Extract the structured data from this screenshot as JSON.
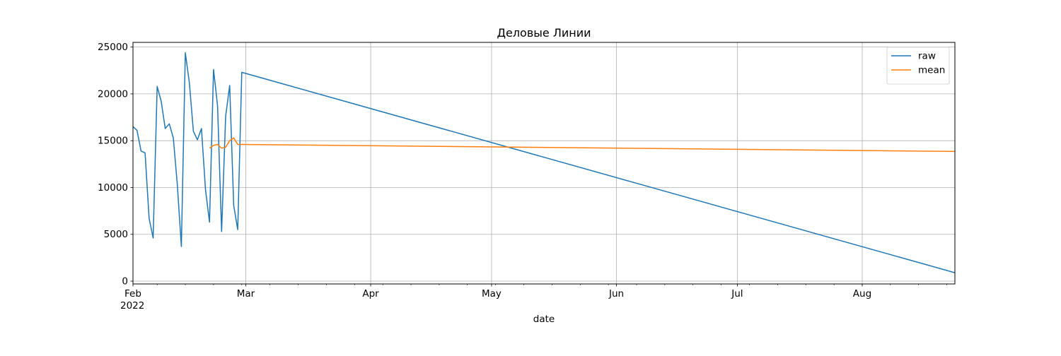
{
  "chart_data": {
    "type": "line",
    "title": "Деловые Линии",
    "xlabel": "date",
    "ylabel": "",
    "x_range": [
      "2022-02-01",
      "2022-08-24"
    ],
    "ylim": [
      -300,
      25500
    ],
    "y_ticks": [
      0,
      5000,
      10000,
      15000,
      20000,
      25000
    ],
    "x_ticks": [
      {
        "date": "2022-02-01",
        "label": "Feb",
        "sublabel": "2022"
      },
      {
        "date": "2022-03-01",
        "label": "Mar"
      },
      {
        "date": "2022-04-01",
        "label": "Apr"
      },
      {
        "date": "2022-05-01",
        "label": "May"
      },
      {
        "date": "2022-06-01",
        "label": "Jun"
      },
      {
        "date": "2022-07-01",
        "label": "Jul"
      },
      {
        "date": "2022-08-01",
        "label": "Aug"
      }
    ],
    "grid": true,
    "legend_position": "top-right",
    "series": [
      {
        "name": "raw",
        "color": "#1f77b4",
        "points": [
          [
            "2022-02-01",
            16500
          ],
          [
            "2022-02-02",
            16100
          ],
          [
            "2022-02-03",
            13900
          ],
          [
            "2022-02-04",
            13700
          ],
          [
            "2022-02-05",
            6700
          ],
          [
            "2022-02-06",
            4600
          ],
          [
            "2022-02-07",
            20800
          ],
          [
            "2022-02-08",
            19200
          ],
          [
            "2022-02-09",
            16300
          ],
          [
            "2022-02-10",
            16800
          ],
          [
            "2022-02-11",
            15300
          ],
          [
            "2022-02-12",
            10300
          ],
          [
            "2022-02-13",
            3700
          ],
          [
            "2022-02-14",
            24400
          ],
          [
            "2022-02-15",
            21200
          ],
          [
            "2022-02-16",
            16000
          ],
          [
            "2022-02-17",
            15100
          ],
          [
            "2022-02-18",
            16300
          ],
          [
            "2022-02-19",
            9800
          ],
          [
            "2022-02-20",
            6300
          ],
          [
            "2022-02-21",
            22600
          ],
          [
            "2022-02-22",
            18700
          ],
          [
            "2022-02-23",
            5300
          ],
          [
            "2022-02-24",
            17600
          ],
          [
            "2022-02-25",
            20900
          ],
          [
            "2022-02-26",
            8100
          ],
          [
            "2022-02-27",
            5500
          ],
          [
            "2022-02-28",
            22300
          ],
          [
            "2022-08-24",
            900
          ]
        ]
      },
      {
        "name": "mean",
        "color": "#ff7f0e",
        "points": [
          [
            "2022-02-20",
            14200
          ],
          [
            "2022-02-21",
            14500
          ],
          [
            "2022-02-22",
            14600
          ],
          [
            "2022-02-23",
            14200
          ],
          [
            "2022-02-24",
            14300
          ],
          [
            "2022-02-25",
            15000
          ],
          [
            "2022-02-26",
            15300
          ],
          [
            "2022-02-27",
            14600
          ],
          [
            "2022-02-28",
            14600
          ],
          [
            "2022-08-24",
            13850
          ]
        ]
      }
    ]
  }
}
